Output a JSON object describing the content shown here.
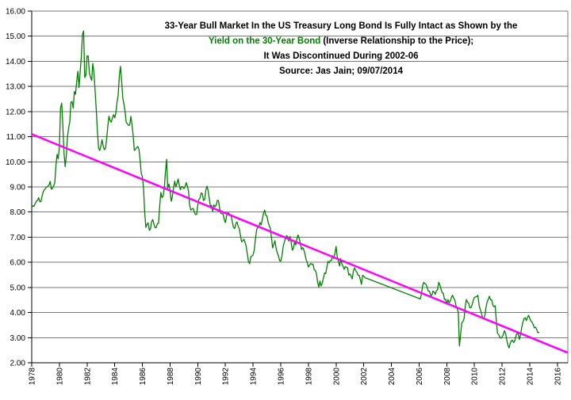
{
  "chart_data": {
    "type": "line",
    "title": {
      "line1": "33-Year Bull Market In the US Treasury Long Bond Is Fully Intact as Shown by the",
      "line2_green": "Yield on the 30-Year Bond",
      "line2_black": "(Inverse Relationship to the Price);",
      "line3": "It Was Discontinued During 2002-06",
      "line4": "Source: Jas Jain; 09/07/2014"
    },
    "colors": {
      "yield_line": "#008000",
      "trend_line": "#FF00FF",
      "gridline": "#7a7a7a",
      "axis": "#000000",
      "title_green": "#008000",
      "text": "#000000",
      "background": "#FFFFFF"
    },
    "x_axis": {
      "min": 1978,
      "max": 2016.75,
      "tick_years": [
        1978,
        1980,
        1982,
        1984,
        1986,
        1988,
        1990,
        1992,
        1994,
        1996,
        1998,
        2000,
        2002,
        2004,
        2006,
        2008,
        2010,
        2012,
        2014,
        2016
      ],
      "tick_labels": [
        "1978",
        "1980",
        "1982",
        "1984",
        "1986",
        "1988",
        "1990",
        "1992",
        "1994",
        "1996",
        "1998",
        "2000",
        "2002",
        "2004",
        "2006",
        "2008",
        "2010",
        "2012",
        "2014",
        "2016"
      ]
    },
    "y_axis": {
      "min": 2,
      "max": 16,
      "step": 1,
      "tick_values": [
        16,
        15,
        14,
        13,
        12,
        11,
        10,
        9,
        8,
        7,
        6,
        5,
        4,
        3,
        2
      ],
      "tick_labels": [
        "16.00",
        "15.00",
        "14.00",
        "13.00",
        "12.00",
        "11.00",
        "10.00",
        "9.00",
        "8.00",
        "7.00",
        "6.00",
        "5.00",
        "4.00",
        "3.00",
        "2.00"
      ]
    },
    "grid": "horizontal-only",
    "legend": "none",
    "series": [
      {
        "name": "Yield on the 30-Year Bond",
        "color_key": "yield_line",
        "stroke_width": 1.3,
        "note": "monthly yields; the two segments are joined by a straight line across the 2002-06 discontinuation",
        "segments": [
          {
            "start_year": 1978.0,
            "step_years": 0.0833333,
            "values": [
              8.18,
              8.25,
              8.23,
              8.34,
              8.43,
              8.46,
              8.57,
              8.41,
              8.42,
              8.64,
              8.81,
              8.88,
              8.94,
              9.0,
              9.03,
              9.08,
              9.22,
              8.91,
              8.95,
              9.03,
              9.17,
              9.85,
              10.3,
              10.12,
              10.6,
              12.13,
              12.34,
              11.4,
              10.36,
              9.81,
              10.24,
              11.0,
              11.34,
              11.59,
              12.37,
              12.4,
              12.14,
              12.8,
              12.69,
              13.2,
              13.6,
              12.96,
              13.59,
              14.17,
              15.07,
              15.21,
              13.35,
              13.45,
              14.22,
              14.22,
              13.53,
              13.37,
              13.24,
              13.92,
              13.55,
              12.77,
              12.07,
              11.17,
              10.54,
              10.45,
              10.63,
              10.88,
              10.63,
              10.48,
              10.53,
              10.93,
              11.4,
              11.82,
              11.63,
              11.58,
              11.75,
              11.88,
              11.75,
              11.95,
              12.38,
              12.65,
              13.43,
              13.8,
              13.21,
              12.54,
              12.29,
              11.98,
              11.56,
              11.52,
              11.45,
              11.47,
              11.81,
              11.47,
              11.05,
              10.45,
              10.5,
              10.56,
              10.61,
              10.5,
              10.06,
              9.54,
              9.4,
              8.93,
              7.96,
              7.39,
              7.52,
              7.57,
              7.27,
              7.33,
              7.62,
              7.7,
              7.52,
              7.37,
              7.39,
              7.54,
              7.55,
              8.25,
              8.78,
              8.57,
              8.64,
              8.97,
              9.59,
              10.1,
              8.95,
              9.12,
              8.83,
              8.43,
              8.63,
              8.95,
              9.23,
              9.0,
              9.14,
              9.32,
              9.06,
              8.89,
              9.02,
              9.01,
              8.93,
              9.01,
              9.17,
              9.03,
              8.83,
              8.27,
              8.08,
              8.12,
              8.15,
              8.0,
              7.9,
              7.9,
              8.26,
              8.5,
              8.56,
              8.76,
              8.73,
              8.46,
              8.5,
              8.86,
              9.03,
              8.86,
              8.54,
              8.24,
              8.27,
              8.03,
              8.29,
              8.21,
              8.27,
              8.47,
              8.45,
              8.14,
              7.95,
              7.93,
              7.92,
              7.7,
              7.58,
              7.85,
              7.97,
              7.96,
              7.89,
              7.84,
              7.6,
              7.39,
              7.34,
              7.53,
              7.61,
              7.44,
              7.34,
              7.09,
              6.82,
              6.85,
              6.92,
              6.81,
              6.63,
              6.32,
              6.03,
              5.94,
              6.21,
              6.25,
              6.29,
              6.49,
              6.91,
              7.27,
              7.41,
              7.4,
              7.58,
              7.49,
              7.71,
              7.94,
              8.08,
              7.87,
              7.85,
              7.61,
              7.45,
              7.36,
              6.95,
              6.57,
              6.72,
              6.86,
              6.55,
              6.37,
              6.26,
              6.06,
              6.05,
              6.24,
              6.6,
              6.79,
              6.93,
              7.06,
              7.03,
              6.84,
              7.03,
              6.81,
              6.48,
              6.55,
              6.83,
              6.69,
              6.93,
              7.09,
              6.94,
              6.77,
              6.51,
              6.58,
              6.5,
              6.33,
              6.11,
              5.99,
              5.81,
              5.89,
              5.95,
              5.92,
              5.93,
              5.7,
              5.68,
              5.54,
              5.2,
              5.01,
              5.25,
              5.06,
              5.16,
              5.37,
              5.58,
              5.55,
              5.81,
              6.04,
              5.98,
              6.07,
              6.07,
              6.26,
              6.15,
              6.35,
              6.63,
              6.23,
              6.05,
              5.85,
              6.15,
              5.93,
              5.85,
              5.72,
              5.83,
              5.8,
              5.78,
              5.49,
              5.54,
              5.45,
              5.34,
              5.65,
              5.78,
              5.67,
              5.61,
              5.48,
              5.48,
              5.32,
              5.12,
              5.48,
              5.45,
              5.39
            ]
          },
          {
            "start_year": 2006.0833,
            "step_years": 0.0833333,
            "values": [
              4.54,
              4.73,
              5.06,
              5.2,
              5.15,
              5.13,
              5.0,
              4.85,
              4.85,
              4.69,
              4.68,
              4.85,
              4.82,
              4.72,
              4.87,
              4.9,
              5.2,
              5.11,
              4.93,
              4.79,
              4.77,
              4.52,
              4.53,
              4.33,
              4.52,
              4.39,
              4.44,
              4.6,
              4.69,
              4.57,
              4.5,
              4.27,
              4.17,
              4.0,
              2.67,
              3.13,
              3.59,
              3.64,
              3.76,
              4.23,
              4.52,
              4.41,
              4.37,
              4.19,
              4.19,
              4.31,
              4.49,
              4.6,
              4.62,
              4.64,
              4.69,
              4.29,
              4.13,
              3.99,
              3.8,
              3.77,
              3.87,
              4.19,
              4.42,
              4.52,
              4.65,
              4.51,
              4.5,
              4.29,
              4.23,
              4.27,
              3.65,
              3.18,
              3.13,
              3.02,
              2.98,
              3.03,
              3.11,
              3.28,
              3.18,
              2.93,
              2.7,
              2.59,
              2.77,
              2.88,
              2.9,
              2.8,
              2.88,
              3.08,
              3.17,
              3.16,
              2.93,
              3.11,
              3.4,
              3.61,
              3.76,
              3.79,
              3.68,
              3.8,
              3.89,
              3.77,
              3.66,
              3.62,
              3.52,
              3.39,
              3.42,
              3.33,
              3.2,
              3.21
            ]
          }
        ]
      },
      {
        "name": "Trend Line",
        "color_key": "trend_line",
        "stroke_width": 2.5,
        "points": [
          {
            "year": 1978.0,
            "value": 11.1
          },
          {
            "year": 2016.75,
            "value": 2.4
          }
        ]
      }
    ]
  }
}
